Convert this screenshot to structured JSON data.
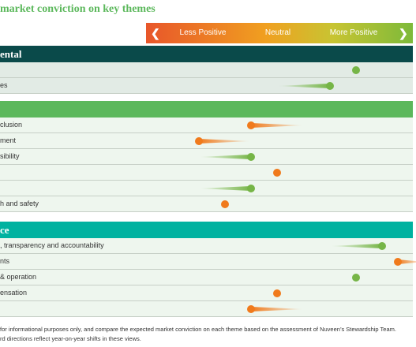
{
  "title": "market conviction on key themes",
  "scale": {
    "left_arrow": "❮",
    "right_arrow": "❯",
    "labels": [
      "Less Positive",
      "Neutral",
      "More Positive"
    ]
  },
  "colors": {
    "title": "#5cb85c",
    "env_header_bg": "#0a4a4a",
    "env_header_text": "#ffffff",
    "social_header_bg": "#5cb85c",
    "gov_header_bg": "#00b2a0",
    "gov_header_text": "#ffffff",
    "row_bg_env": "#e2ebe5",
    "row_bg_light": "#eef6ee",
    "green": "#76b547",
    "orange": "#f07a1c"
  },
  "sections": [
    {
      "name": "ental",
      "bg": "#0a4a4a",
      "color": "#ffffff",
      "rows": [
        {
          "label": "",
          "value": 2,
          "prev": 2,
          "color": "green"
        },
        {
          "label": "es",
          "value": 1.5,
          "prev": 0.5,
          "color": "green"
        }
      ]
    },
    {
      "name": "",
      "bg": "#5cb85c",
      "color": "#ffffff",
      "rows": [
        {
          "label": "clusion",
          "value": 0,
          "prev": 1,
          "color": "orange"
        },
        {
          "label": "ment",
          "value": -1,
          "prev": 0,
          "color": "orange"
        },
        {
          "label": "sibility",
          "value": 0,
          "prev": -1,
          "color": "green"
        },
        {
          "label": "",
          "value": 0.5,
          "prev": 0.5,
          "color": "orange"
        },
        {
          "label": "",
          "value": 0,
          "prev": -1,
          "color": "green"
        },
        {
          "label": "h and safety",
          "value": -0.5,
          "prev": -0.5,
          "color": "orange"
        }
      ]
    },
    {
      "name": "ce",
      "bg": "#00b2a0",
      "color": "#ffffff",
      "rows": [
        {
          "label": ", transparency and accountability",
          "value": 2.5,
          "prev": 1.5,
          "color": "green"
        },
        {
          "label": "nts",
          "value": 2.8,
          "prev": 3.3,
          "color": "orange"
        },
        {
          "label": " & operation",
          "value": 2,
          "prev": 2,
          "color": "green"
        },
        {
          "label": "ensation",
          "value": 0.5,
          "prev": 0.5,
          "color": "orange"
        },
        {
          "label": "",
          "value": 0,
          "prev": 1,
          "color": "orange"
        }
      ]
    }
  ],
  "chart_data": {
    "type": "scatter",
    "title": "market conviction on key themes",
    "x_axis_labels": [
      "Less Positive",
      "Neutral",
      "More Positive"
    ],
    "xlim": [
      -2,
      3.5
    ],
    "categories": [
      "",
      "es",
      "clusion",
      "ment",
      "sibility",
      "",
      "",
      "h and safety",
      ", transparency and accountability",
      "nts",
      " & operation",
      "ensation",
      ""
    ],
    "values": [
      2,
      1.5,
      0,
      -1,
      0,
      0.5,
      0,
      -0.5,
      2.5,
      2.8,
      2,
      0.5,
      0
    ],
    "previous": [
      2,
      0.5,
      1,
      0,
      -1,
      0.5,
      -1,
      -0.5,
      1.5,
      3.3,
      2,
      0.5,
      1
    ]
  },
  "footnote": [
    "for informational purposes only, and compare the expected market conviction on each theme based on the assessment of Nuveen’s Stewardship Team.",
    "rd directions reflect year-on-year shifts in these views."
  ]
}
